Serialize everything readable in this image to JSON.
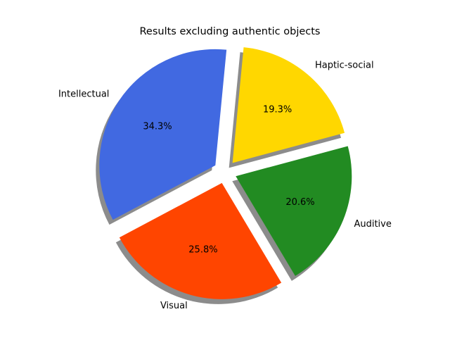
{
  "chart_data": {
    "type": "pie",
    "title": "Results excluding authentic objects",
    "start_angle_deg": 15,
    "direction": "counterclockwise",
    "shadow": true,
    "exploded": true,
    "slices": [
      {
        "label": "Haptic-social",
        "value": 19.3,
        "percent_label": "19.3%",
        "color": "#FFD700"
      },
      {
        "label": "Intellectual",
        "value": 34.3,
        "percent_label": "34.3%",
        "color": "#4169E1"
      },
      {
        "label": "Visual",
        "value": 25.8,
        "percent_label": "25.8%",
        "color": "#FF4500"
      },
      {
        "label": "Auditive",
        "value": 20.6,
        "percent_label": "20.6%",
        "color": "#228B22"
      }
    ]
  }
}
